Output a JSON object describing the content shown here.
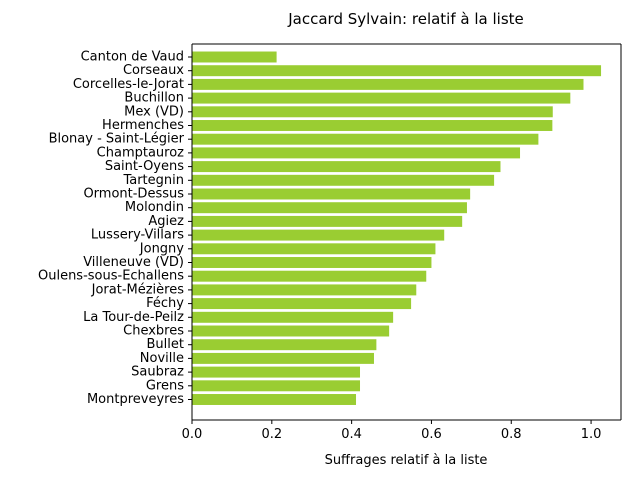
{
  "chart_data": {
    "type": "bar",
    "orientation": "horizontal",
    "title": "Jaccard Sylvain: relatif à la liste",
    "xlabel": "Suffrages relatif à la liste",
    "ylabel": "",
    "xlim": [
      0,
      1.075
    ],
    "xticks": [
      "0.0",
      "0.2",
      "0.4",
      "0.6",
      "0.8",
      "1.0"
    ],
    "grid": false,
    "bar_color": "#9acd32",
    "categories": [
      "Canton de Vaud",
      "Corseaux",
      "Corcelles-le-Jorat",
      "Buchillon",
      "Mex (VD)",
      "Hermenches",
      "Blonay - Saint-Légier",
      "Champtauroz",
      "Saint-Oyens",
      "Tartegnin",
      "Ormont-Dessus",
      "Molondin",
      "Agiez",
      "Lussery-Villars",
      "Jongny",
      "Villeneuve (VD)",
      "Oulens-sous-Echallens",
      "Jorat-Mézières",
      "Féchy",
      "La Tour-de-Peilz",
      "Chexbres",
      "Bullet",
      "Noville",
      "Saubraz",
      "Grens",
      "Montpreveyres"
    ],
    "values": [
      0.212,
      1.025,
      0.981,
      0.948,
      0.904,
      0.903,
      0.868,
      0.822,
      0.773,
      0.757,
      0.697,
      0.689,
      0.677,
      0.632,
      0.61,
      0.6,
      0.587,
      0.562,
      0.549,
      0.504,
      0.494,
      0.462,
      0.456,
      0.421,
      0.421,
      0.411
    ]
  }
}
